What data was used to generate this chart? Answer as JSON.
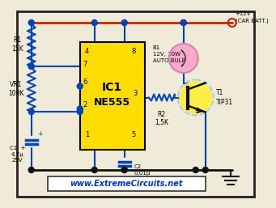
{
  "bg_color": "#f0ead8",
  "border_color": "#222222",
  "wire_color_red": "#cc2200",
  "wire_color_blue": "#0044bb",
  "wire_color_black": "#111111",
  "ic_color": "#ffdd00",
  "ic_label1": "IC1",
  "ic_label2": "NE555",
  "transistor_fill": "#ffee44",
  "transistor_circle": "#99ccff",
  "bulb_fill": "#ffaacc",
  "bulb_stroke": "#cc88aa",
  "node_color": "#0044bb",
  "title_text": "www.ExtremeCircuits.net",
  "title_bg": "#ffffff",
  "title_border": "#333333",
  "plus12v_text": "+12V\n(CAR BATT.)",
  "b1_text": "B1\n12V, 10W\nAUTO BULB",
  "r1_text": "R1\n15K",
  "vr1_text": "VR1\n100K",
  "c1_text": "C1  +\n4,7μ\n25V",
  "c2_text": "C2\n0,01μ",
  "r2_text": "R2\n1,5K",
  "t1_text": "T1\nTIP31"
}
